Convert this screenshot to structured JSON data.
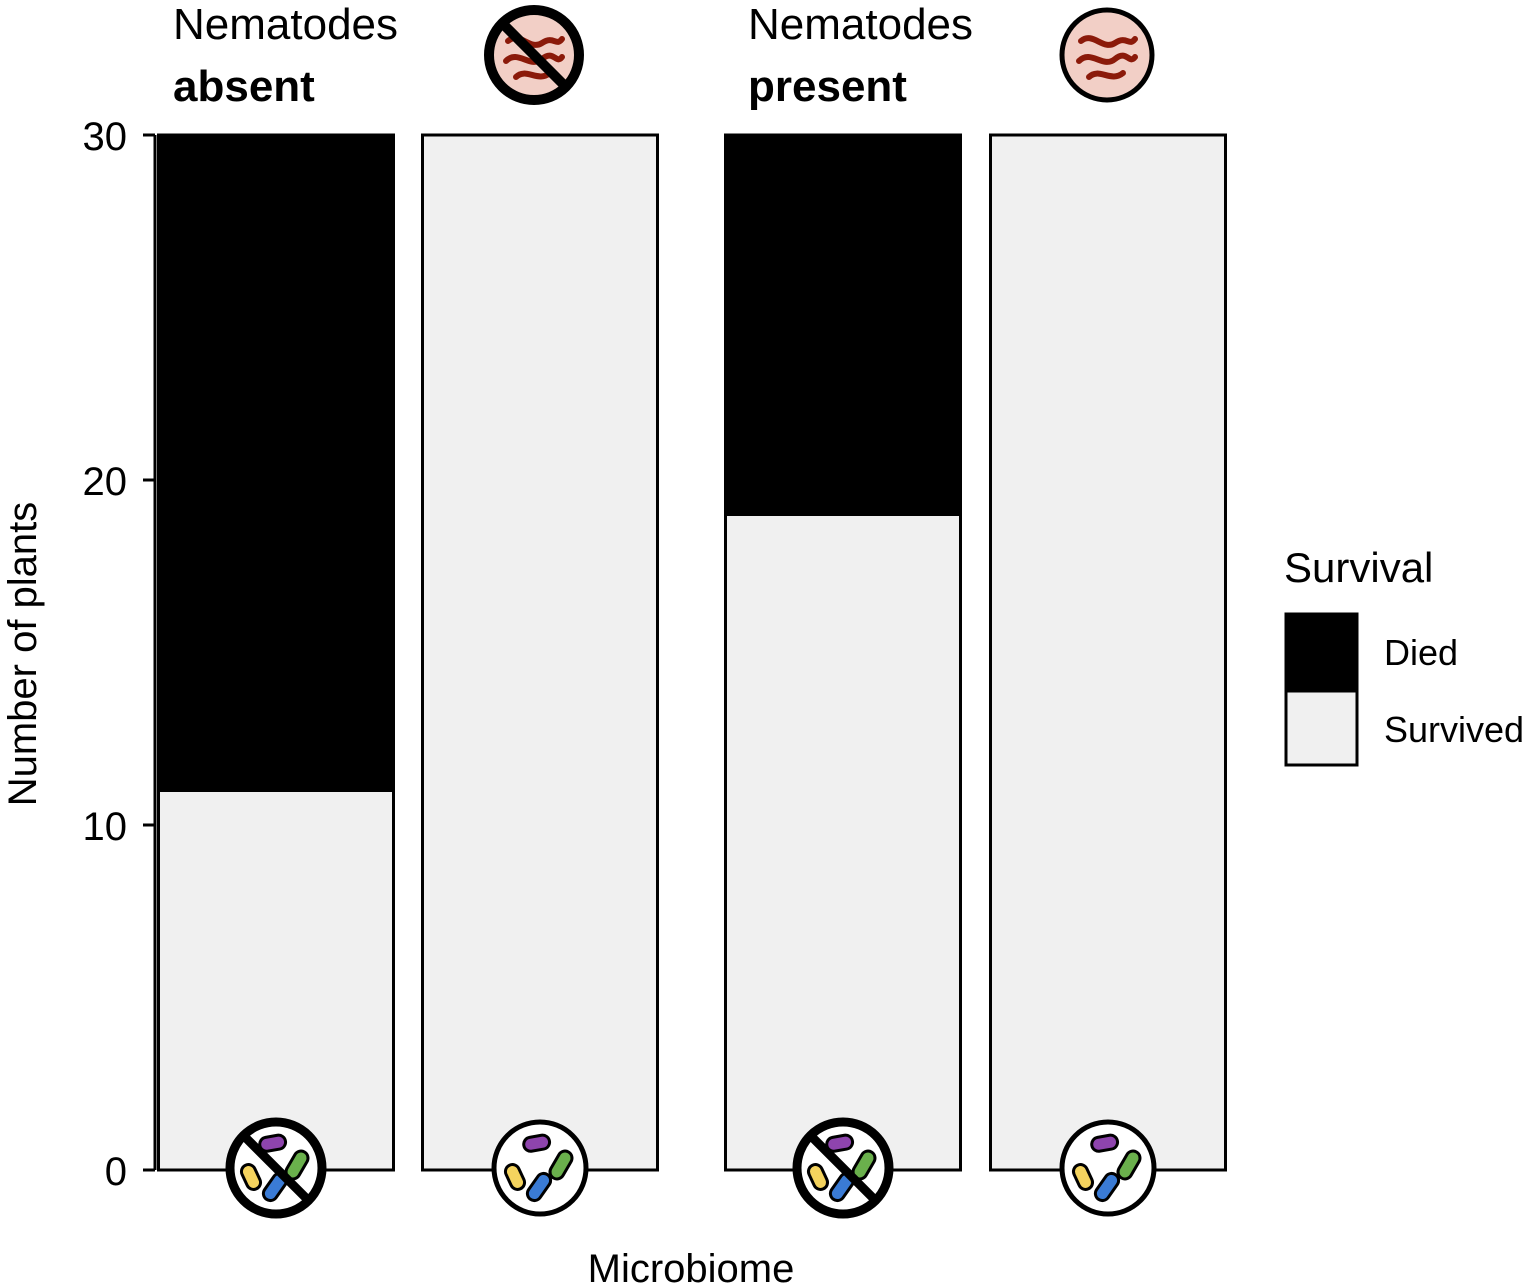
{
  "chart_data": {
    "type": "bar",
    "stacked": true,
    "facets": [
      {
        "title_line1": "Nematodes",
        "title_line2": "absent",
        "nematode_icon": "nematode-crossed-icon",
        "categories": [
          "microbiome-absent-icon",
          "microbiome-present-icon"
        ],
        "series": [
          {
            "name": "Survived",
            "values": [
              11,
              30
            ]
          },
          {
            "name": "Died",
            "values": [
              19,
              0
            ]
          }
        ]
      },
      {
        "title_line1": "Nematodes",
        "title_line2": "present",
        "nematode_icon": "nematode-icon",
        "categories": [
          "microbiome-absent-icon",
          "microbiome-present-icon"
        ],
        "series": [
          {
            "name": "Survived",
            "values": [
              19,
              30
            ]
          },
          {
            "name": "Died",
            "values": [
              11,
              0
            ]
          }
        ]
      }
    ],
    "xlabel": "Microbiome",
    "ylabel": "Number of plants",
    "ylim": [
      0,
      30
    ],
    "yticks": [
      "0",
      "10",
      "20",
      "30"
    ],
    "grid": false,
    "legend": {
      "title": "Survival",
      "position": "right",
      "entries": [
        {
          "name": "Died",
          "color": "#000000"
        },
        {
          "name": "Survived",
          "color": "#f0f0f0"
        }
      ]
    },
    "colors": {
      "Died": "#000000",
      "Survived": "#f0f0f0"
    }
  }
}
